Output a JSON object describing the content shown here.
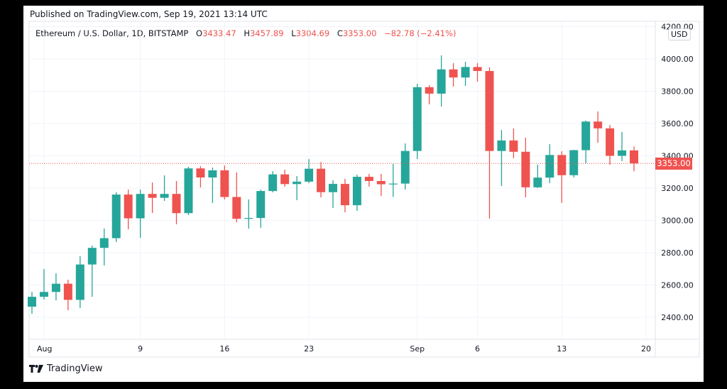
{
  "header": {
    "published": "Published on TradingView.com, Sep 19, 2021 13:14 UTC",
    "symbol": "Ethereum / U.S. Dollar, 1D, BITSTAMP",
    "o_label": "O",
    "o_value": "3433.47",
    "h_label": "H",
    "h_value": "3457.89",
    "l_label": "L",
    "l_value": "3304.69",
    "c_label": "C",
    "c_value": "3353.00",
    "change": "−82.78 (−2.41%)"
  },
  "currency": "USD",
  "last_price_label": "3353.00",
  "logo_text": "TradingView",
  "colors": {
    "up": "#26a69a",
    "down": "#ef5350",
    "grid": "#f0f3fa",
    "text": "#131722"
  },
  "chart_data": {
    "type": "candlestick",
    "ylim": [
      2300,
      4200
    ],
    "grid": true,
    "last_price": 3353.0,
    "y_ticks": [
      {
        "value": 2400,
        "label": "2400.00"
      },
      {
        "value": 2600,
        "label": "2600.00"
      },
      {
        "value": 2800,
        "label": "2800.00"
      },
      {
        "value": 3000,
        "label": "3000.00"
      },
      {
        "value": 3200,
        "label": "3200.00"
      },
      {
        "value": 3400,
        "label": "3400.00"
      },
      {
        "value": 3600,
        "label": "3600.00"
      },
      {
        "value": 3800,
        "label": "3800.00"
      },
      {
        "value": 4000,
        "label": "4000.00"
      },
      {
        "value": 4200,
        "label": "4200.00"
      }
    ],
    "x_ticks": [
      {
        "date": "2021-08-01",
        "label": "Aug"
      },
      {
        "date": "2021-08-09",
        "label": "9"
      },
      {
        "date": "2021-08-16",
        "label": "16"
      },
      {
        "date": "2021-08-23",
        "label": "23"
      },
      {
        "date": "2021-09-01",
        "label": "Sep"
      },
      {
        "date": "2021-09-06",
        "label": "6"
      },
      {
        "date": "2021-09-13",
        "label": "13"
      },
      {
        "date": "2021-09-20",
        "label": "20"
      }
    ],
    "start_date": "2021-07-31",
    "candles_ohlc": [
      [
        2466,
        2558,
        2422,
        2527
      ],
      [
        2527,
        2699,
        2510,
        2557
      ],
      [
        2557,
        2672,
        2505,
        2608
      ],
      [
        2608,
        2633,
        2444,
        2508
      ],
      [
        2508,
        2778,
        2457,
        2727
      ],
      [
        2727,
        2844,
        2527,
        2830
      ],
      [
        2830,
        2950,
        2721,
        2890
      ],
      [
        2890,
        3174,
        2866,
        3160
      ],
      [
        3160,
        3191,
        2945,
        3013
      ],
      [
        3013,
        3191,
        2892,
        3164
      ],
      [
        3164,
        3235,
        3046,
        3140
      ],
      [
        3140,
        3279,
        3121,
        3164
      ],
      [
        3164,
        3244,
        2976,
        3045
      ],
      [
        3045,
        3332,
        3033,
        3322
      ],
      [
        3322,
        3336,
        3204,
        3266
      ],
      [
        3266,
        3327,
        3108,
        3310
      ],
      [
        3310,
        3340,
        3130,
        3145
      ],
      [
        3145,
        3297,
        2989,
        3010
      ],
      [
        3010,
        3130,
        2949,
        3015
      ],
      [
        3015,
        3191,
        2954,
        3182
      ],
      [
        3182,
        3305,
        3174,
        3285
      ],
      [
        3285,
        3314,
        3209,
        3225
      ],
      [
        3225,
        3275,
        3125,
        3240
      ],
      [
        3240,
        3380,
        3231,
        3320
      ],
      [
        3320,
        3362,
        3143,
        3175
      ],
      [
        3175,
        3248,
        3077,
        3226
      ],
      [
        3226,
        3257,
        3050,
        3094
      ],
      [
        3094,
        3283,
        3059,
        3270
      ],
      [
        3270,
        3288,
        3209,
        3244
      ],
      [
        3244,
        3288,
        3152,
        3224
      ],
      [
        3224,
        3350,
        3145,
        3228
      ],
      [
        3228,
        3477,
        3191,
        3430
      ],
      [
        3430,
        3846,
        3380,
        3825
      ],
      [
        3825,
        3837,
        3719,
        3785
      ],
      [
        3785,
        4022,
        3705,
        3935
      ],
      [
        3935,
        3974,
        3829,
        3885
      ],
      [
        3885,
        3982,
        3833,
        3950
      ],
      [
        3950,
        3974,
        3859,
        3925
      ],
      [
        3925,
        3947,
        3011,
        3430
      ],
      [
        3430,
        3560,
        3213,
        3495
      ],
      [
        3495,
        3569,
        3385,
        3425
      ],
      [
        3425,
        3512,
        3143,
        3205
      ],
      [
        3205,
        3345,
        3200,
        3265
      ],
      [
        3265,
        3472,
        3231,
        3405
      ],
      [
        3405,
        3428,
        3108,
        3280
      ],
      [
        3280,
        3437,
        3266,
        3435
      ],
      [
        3435,
        3618,
        3354,
        3612
      ],
      [
        3612,
        3675,
        3481,
        3570
      ],
      [
        3570,
        3591,
        3345,
        3400
      ],
      [
        3400,
        3547,
        3367,
        3433.47
      ],
      [
        3433.47,
        3457.89,
        3304.69,
        3353.0
      ]
    ]
  }
}
